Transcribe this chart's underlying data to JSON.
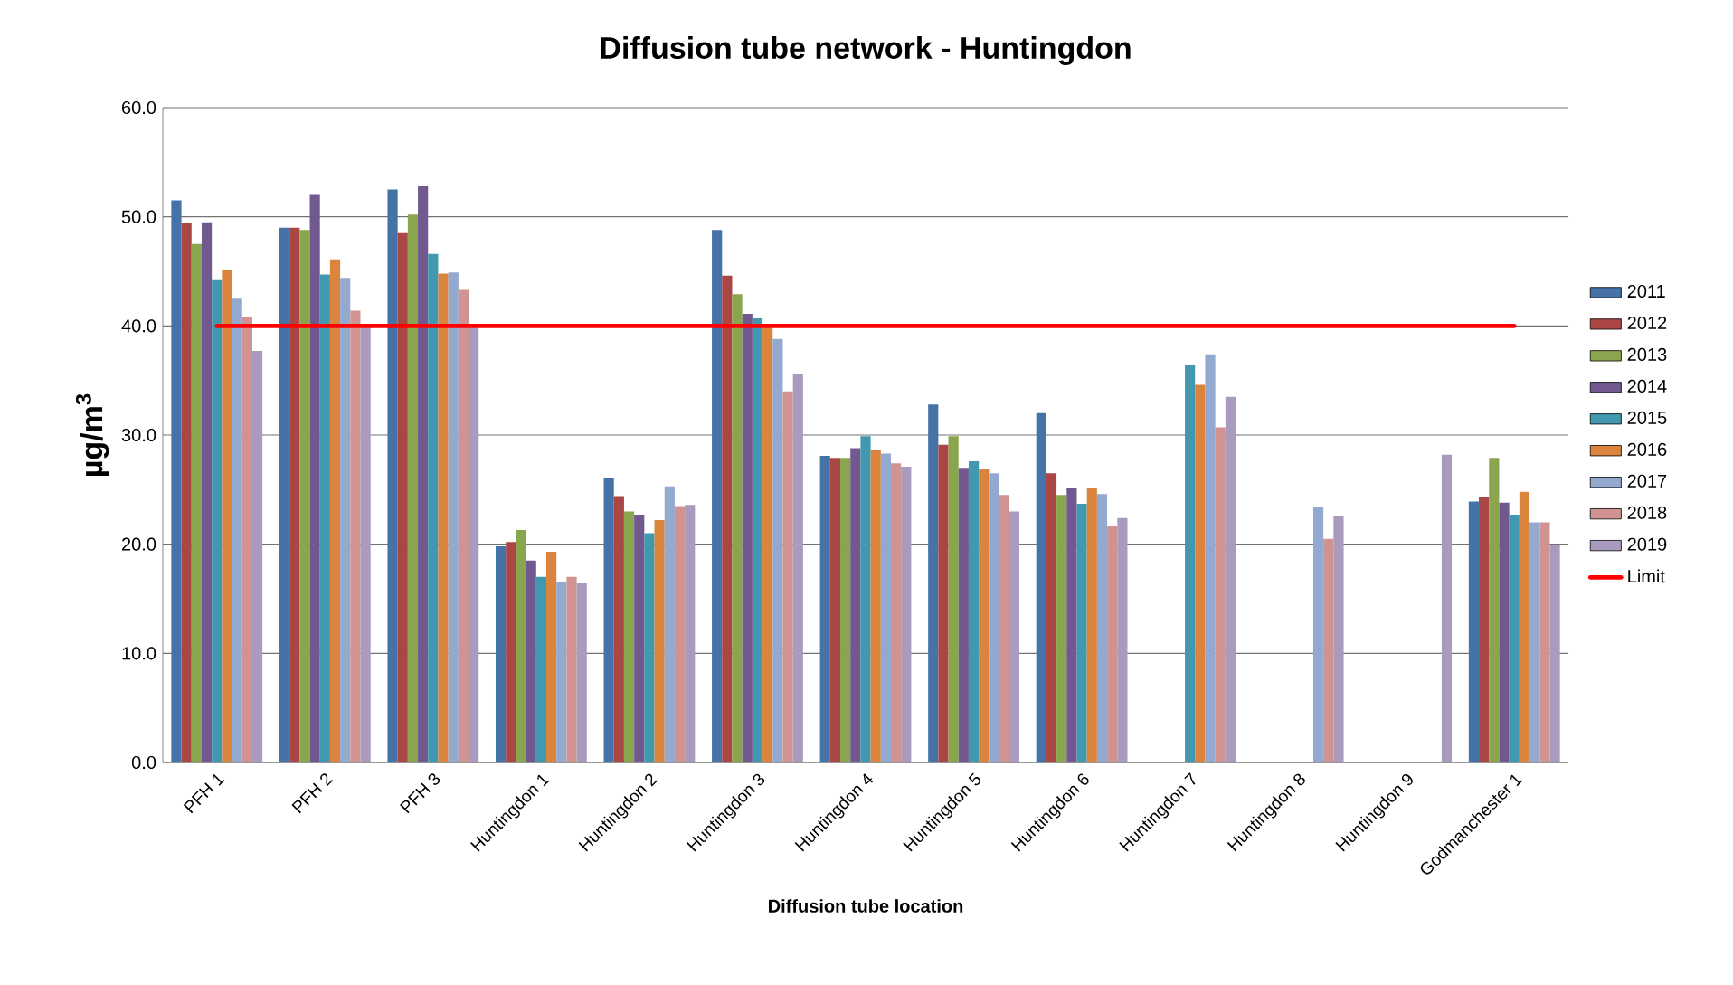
{
  "chart_data": {
    "type": "bar",
    "title": "Diffusion tube network - Huntingdon",
    "xlabel": "Diffusion tube location",
    "ylabel": "µg/m$^{3}$",
    "categories": [
      "PFH 1",
      "PFH 2",
      "PFH 3",
      "Huntingdon 1",
      "Huntingdon 2",
      "Huntingdon 3",
      "Huntingdon 4",
      "Huntingdon 5",
      "Huntingdon 6",
      "Huntingdon 7",
      "Huntingdon 8",
      "Huntingdon 9",
      "Godmanchester 1"
    ],
    "series": [
      {
        "name": "2011",
        "color": "#4572a7",
        "values": [
          51.5,
          49.0,
          52.5,
          19.8,
          26.1,
          48.8,
          28.1,
          32.8,
          32.0,
          null,
          null,
          null,
          23.9
        ]
      },
      {
        "name": "2012",
        "color": "#aa4643",
        "values": [
          49.4,
          49.0,
          48.5,
          20.2,
          24.4,
          44.6,
          27.9,
          29.1,
          26.5,
          null,
          null,
          null,
          24.3
        ]
      },
      {
        "name": "2013",
        "color": "#89a54e",
        "values": [
          47.5,
          48.8,
          50.2,
          21.3,
          23.0,
          42.9,
          27.9,
          29.9,
          24.5,
          null,
          null,
          null,
          27.9
        ]
      },
      {
        "name": "2014",
        "color": "#71588f",
        "values": [
          49.5,
          52.0,
          52.8,
          18.5,
          22.7,
          41.1,
          28.8,
          27.0,
          25.2,
          null,
          null,
          null,
          23.8
        ]
      },
      {
        "name": "2015",
        "color": "#4198af",
        "values": [
          44.2,
          44.7,
          46.6,
          17.0,
          21.0,
          40.7,
          29.9,
          27.6,
          23.7,
          36.4,
          null,
          null,
          22.7
        ]
      },
      {
        "name": "2016",
        "color": "#db843d",
        "values": [
          45.1,
          46.1,
          44.8,
          19.3,
          22.2,
          40.0,
          28.6,
          26.9,
          25.2,
          34.6,
          null,
          null,
          24.8
        ]
      },
      {
        "name": "2017",
        "color": "#93a9cf",
        "values": [
          42.5,
          44.4,
          44.9,
          16.5,
          25.3,
          38.8,
          28.3,
          26.5,
          24.6,
          37.4,
          23.4,
          null,
          22.0
        ]
      },
      {
        "name": "2018",
        "color": "#d19392",
        "values": [
          40.8,
          41.4,
          43.3,
          17.0,
          23.5,
          34.0,
          27.4,
          24.5,
          21.7,
          30.7,
          20.5,
          null,
          22.0
        ]
      },
      {
        "name": "2019",
        "color": "#a99bbd",
        "values": [
          37.7,
          39.9,
          39.9,
          16.4,
          23.6,
          35.6,
          27.1,
          23.0,
          22.4,
          33.5,
          22.6,
          28.2,
          19.9
        ]
      },
      {
        "name": "Limit",
        "type": "line",
        "color": "#ff0000",
        "values": [
          40,
          40,
          40,
          40,
          40,
          40,
          40,
          40,
          40,
          40,
          40,
          40,
          40
        ]
      }
    ],
    "ylim": [
      0,
      60
    ],
    "yticks": [
      {
        "value": 0,
        "label": "0.0"
      },
      {
        "value": 10,
        "label": "10.0"
      },
      {
        "value": 20,
        "label": "20.0"
      },
      {
        "value": 30,
        "label": "30.0"
      },
      {
        "value": 40,
        "label": "40.0"
      },
      {
        "value": 50,
        "label": "50.0"
      },
      {
        "value": 60,
        "label": "60.0"
      }
    ],
    "grid": "y",
    "legend": "right"
  }
}
